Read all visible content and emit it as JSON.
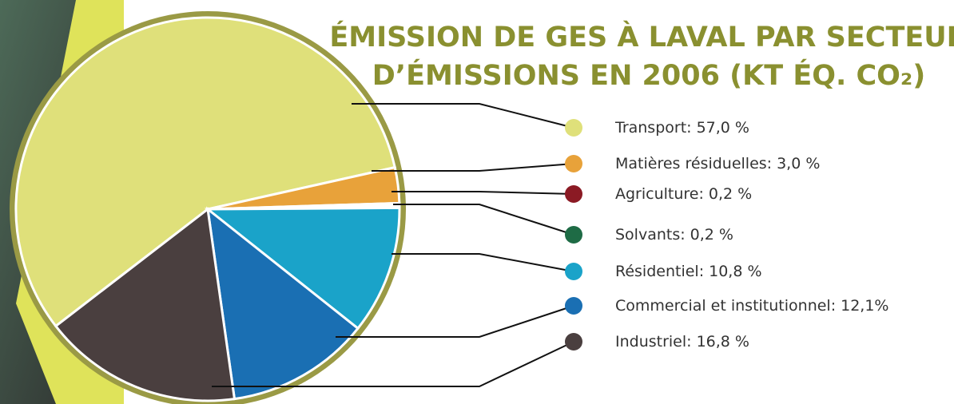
{
  "chart_data": {
    "type": "pie",
    "title": [
      "ÉMISSION DE GES À LAVAL PAR SECTEUR",
      "D’ÉMISSIONS EN 2006 (KT ÉQ. CO₂)"
    ],
    "categories": [
      "Transport:",
      "Matières résiduelles:",
      "Agriculture:",
      "Solvants:",
      "Résidentiel:",
      "Commercial et institutionnel:",
      "Industriel:"
    ],
    "values": [
      57.0,
      3.0,
      0.2,
      0.2,
      10.8,
      12.1,
      16.8
    ],
    "value_labels": [
      "57,0 %",
      "3,0 %",
      "0,2 %",
      "0,2 %",
      "10,8 %",
      "12,1%",
      "16,8 %"
    ],
    "colors": [
      "#dfe07a",
      "#e8a23a",
      "#8b1a24",
      "#1e6b45",
      "#1aa3c9",
      "#1a6fb3",
      "#4a3f3f"
    ]
  }
}
